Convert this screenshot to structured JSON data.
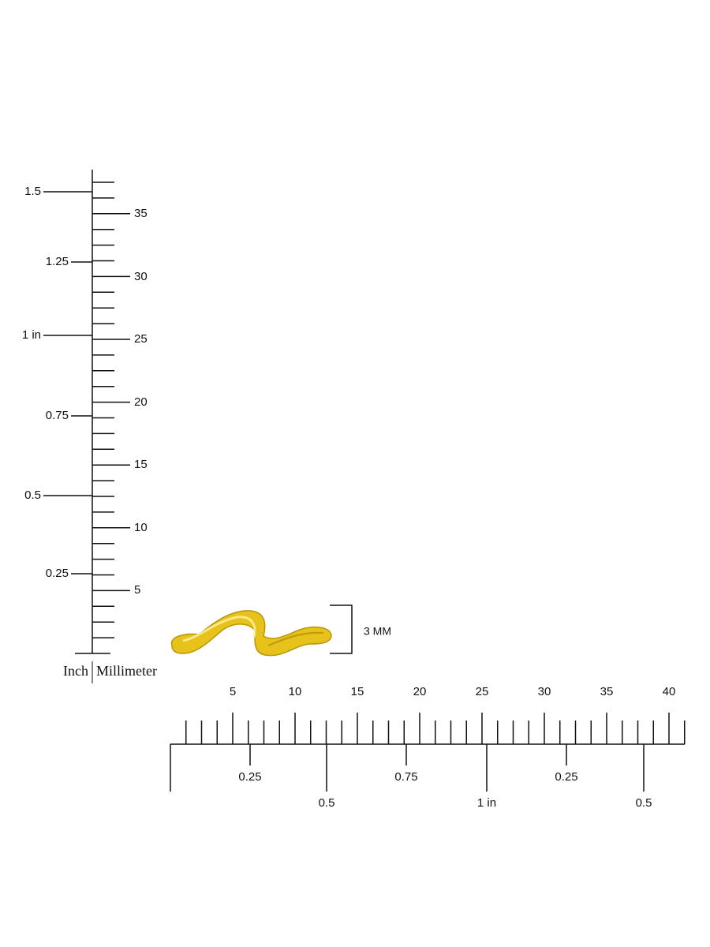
{
  "vertical_ruler": {
    "inch_labels": [
      "1.5",
      "1.25",
      "1 in",
      "0.75",
      "0.5",
      "0.25"
    ],
    "mm_labels": [
      "35",
      "30",
      "25",
      "20",
      "15",
      "10",
      "5"
    ],
    "inch_caption": "Inch",
    "mm_caption": "Millimeter"
  },
  "ring": {
    "height_label": "3 MM"
  },
  "horizontal_ruler": {
    "mm_labels": [
      "5",
      "10",
      "15",
      "20",
      "25",
      "30",
      "35",
      "40"
    ],
    "inch_labels": [
      "0.25",
      "0.5",
      "0.75",
      "1 in",
      "0.25",
      "0.5"
    ]
  }
}
